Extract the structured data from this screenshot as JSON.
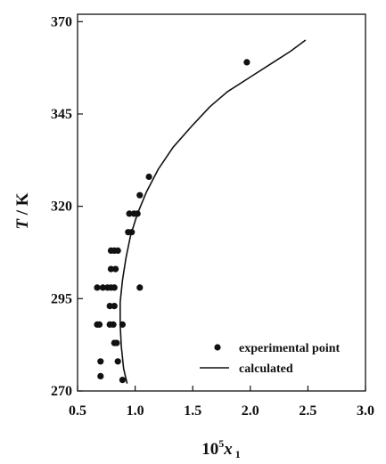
{
  "chart_data": {
    "type": "scatter",
    "xlabel": {
      "base": "10",
      "sup": "5",
      "var": "x",
      "sub": " 1"
    },
    "ylabel": {
      "var": "T",
      "unit": " / K"
    },
    "xlim": [
      0.5,
      3.0
    ],
    "ylim": [
      270,
      372
    ],
    "xticks": [
      "0.5",
      "1.0",
      "1.5",
      "2.0",
      "2.5",
      "3.0"
    ],
    "yticks": [
      "270",
      "295",
      "320",
      "345",
      "370"
    ],
    "grid": false,
    "legend": {
      "placement": "bottom-right",
      "entries": [
        {
          "label": "experimental point",
          "marker": "dot"
        },
        {
          "label": "calculated",
          "marker": "line"
        }
      ]
    },
    "series": [
      {
        "name": "experimental point",
        "kind": "points",
        "color": "#111111",
        "points": [
          [
            0.7,
            274
          ],
          [
            0.89,
            273
          ],
          [
            0.7,
            278
          ],
          [
            0.85,
            278
          ],
          [
            0.82,
            283
          ],
          [
            0.84,
            283
          ],
          [
            0.67,
            288
          ],
          [
            0.69,
            288
          ],
          [
            0.78,
            288
          ],
          [
            0.81,
            288
          ],
          [
            0.89,
            288
          ],
          [
            0.78,
            293
          ],
          [
            0.82,
            293
          ],
          [
            0.67,
            298
          ],
          [
            0.72,
            298
          ],
          [
            0.76,
            298
          ],
          [
            0.79,
            298
          ],
          [
            0.82,
            298
          ],
          [
            1.04,
            298
          ],
          [
            0.79,
            303
          ],
          [
            0.83,
            303
          ],
          [
            0.79,
            308
          ],
          [
            0.82,
            308
          ],
          [
            0.85,
            308
          ],
          [
            0.94,
            313
          ],
          [
            0.97,
            313
          ],
          [
            0.95,
            318
          ],
          [
            0.99,
            318
          ],
          [
            1.02,
            318
          ],
          [
            1.04,
            323
          ],
          [
            1.12,
            328
          ],
          [
            1.97,
            359
          ]
        ]
      },
      {
        "name": "calculated",
        "kind": "line",
        "color": "#111111",
        "points": [
          [
            0.93,
            272
          ],
          [
            0.9,
            276
          ],
          [
            0.88,
            282
          ],
          [
            0.87,
            288
          ],
          [
            0.87,
            294
          ],
          [
            0.89,
            300
          ],
          [
            0.92,
            306
          ],
          [
            0.96,
            312
          ],
          [
            1.02,
            318
          ],
          [
            1.1,
            324
          ],
          [
            1.2,
            330
          ],
          [
            1.33,
            336
          ],
          [
            1.5,
            342
          ],
          [
            1.65,
            347
          ],
          [
            1.8,
            351
          ],
          [
            2.0,
            355
          ],
          [
            2.2,
            359
          ],
          [
            2.35,
            362
          ],
          [
            2.48,
            365
          ]
        ]
      }
    ]
  }
}
